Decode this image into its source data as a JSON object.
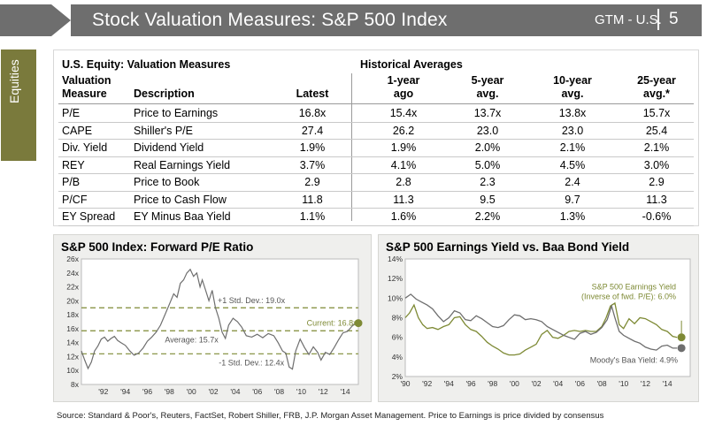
{
  "header": {
    "title": "Stock Valuation Measures: S&P 500 Index",
    "ref": "GTM - U.S.",
    "page": "5"
  },
  "sidebar": {
    "label": "Equities"
  },
  "table": {
    "title": "U.S. Equity: Valuation Measures",
    "hist_title": "Historical Averages",
    "headers": {
      "measure": "Valuation\nMeasure",
      "description": "Description",
      "latest": "Latest",
      "h1": "1-year\nago",
      "h2": "5-year\navg.",
      "h3": "10-year\navg.",
      "h4": "25-year\navg.*"
    },
    "rows": [
      [
        "P/E",
        "Price to Earnings",
        "16.8x",
        "15.4x",
        "13.7x",
        "13.8x",
        "15.7x"
      ],
      [
        "CAPE",
        "Shiller's P/E",
        "27.4",
        "26.2",
        "23.0",
        "23.0",
        "25.4"
      ],
      [
        "Div. Yield",
        "Dividend Yield",
        "1.9%",
        "1.9%",
        "2.0%",
        "2.1%",
        "2.1%"
      ],
      [
        "REY",
        "Real Earnings Yield",
        "3.7%",
        "4.1%",
        "5.0%",
        "4.5%",
        "3.0%"
      ],
      [
        "P/B",
        "Price to Book",
        "2.9",
        "2.8",
        "2.3",
        "2.4",
        "2.9"
      ],
      [
        "P/CF",
        "Price to Cash Flow",
        "11.8",
        "11.3",
        "9.5",
        "9.7",
        "11.3"
      ],
      [
        "EY Spread",
        "EY Minus Baa Yield",
        "1.1%",
        "1.6%",
        "2.2%",
        "1.3%",
        "-0.6%"
      ]
    ]
  },
  "chart_data": [
    {
      "type": "line",
      "title": "S&P 500 Index: Forward P/E Ratio",
      "ylim": [
        8,
        26
      ],
      "yticks": [
        "8x",
        "10x",
        "12x",
        "14x",
        "16x",
        "18x",
        "20x",
        "22x",
        "24x",
        "26x"
      ],
      "xticks": [
        "'92",
        "'94",
        "'96",
        "'98",
        "'00",
        "'02",
        "'04",
        "'06",
        "'08",
        "'10",
        "'12",
        "'14"
      ],
      "reference_lines": [
        {
          "label": "+1 Std. Dev.: 19.0x",
          "value": 19.0
        },
        {
          "label": "Average: 15.7x",
          "value": 15.7
        },
        {
          "label": "-1 Std. Dev.: 12.4x",
          "value": 12.4
        }
      ],
      "current_label": "Current: 16.8x",
      "current_value": 16.8,
      "x": [
        1990.0,
        1990.3,
        1990.6,
        1990.9,
        1991.2,
        1991.5,
        1991.8,
        1992.1,
        1992.4,
        1992.7,
        1993.0,
        1993.3,
        1993.6,
        1994.0,
        1994.4,
        1994.8,
        1995.2,
        1995.6,
        1996.0,
        1996.4,
        1996.8,
        1997.2,
        1997.6,
        1998.0,
        1998.4,
        1998.7,
        1999.0,
        1999.3,
        1999.6,
        1999.9,
        2000.2,
        2000.5,
        2000.8,
        2001.0,
        2001.3,
        2001.6,
        2001.9,
        2002.2,
        2002.5,
        2002.8,
        2003.1,
        2003.4,
        2003.8,
        2004.2,
        2004.6,
        2005.0,
        2005.5,
        2006.0,
        2006.5,
        2007.0,
        2007.5,
        2007.9,
        2008.3,
        2008.6,
        2008.9,
        2009.2,
        2009.5,
        2009.9,
        2010.3,
        2010.7,
        2011.1,
        2011.5,
        2011.8,
        2012.2,
        2012.6,
        2013.0,
        2013.4,
        2013.8,
        2014.2,
        2014.6,
        2014.9
      ],
      "values": [
        12.8,
        11.5,
        10.3,
        11.2,
        12.8,
        13.5,
        14.5,
        14.8,
        14.2,
        14.6,
        14.9,
        14.3,
        14.0,
        13.6,
        12.8,
        12.2,
        12.5,
        13.2,
        14.2,
        14.8,
        15.5,
        16.5,
        18.0,
        19.5,
        21.0,
        20.5,
        22.5,
        23.0,
        24.0,
        24.5,
        23.5,
        24.0,
        22.0,
        23.0,
        21.5,
        20.0,
        21.5,
        19.0,
        17.5,
        15.5,
        14.6,
        16.5,
        17.5,
        17.0,
        16.2,
        15.0,
        14.8,
        15.2,
        14.7,
        15.3,
        15.0,
        14.0,
        12.8,
        12.5,
        10.5,
        10.2,
        12.8,
        14.5,
        13.3,
        12.3,
        13.4,
        12.6,
        11.5,
        12.6,
        12.3,
        13.3,
        14.4,
        15.4,
        15.6,
        16.3,
        16.8
      ]
    },
    {
      "type": "line",
      "title": "S&P 500 Earnings Yield vs. Baa Bond Yield",
      "ylim": [
        2,
        14
      ],
      "yticks": [
        "2%",
        "4%",
        "6%",
        "8%",
        "10%",
        "12%",
        "14%"
      ],
      "xticks": [
        "'90",
        "'92",
        "'94",
        "'96",
        "'98",
        "'00",
        "'02",
        "'04",
        "'06",
        "'08",
        "'10",
        "'12",
        "'14"
      ],
      "series": [
        {
          "name": "S&P 500 Earnings Yield (Inverse of fwd. P/E): 6.0%",
          "color": "#7e8a35",
          "x": [
            1990.0,
            1990.4,
            1990.8,
            1991.2,
            1991.6,
            1992.0,
            1992.5,
            1993.0,
            1993.5,
            1994.0,
            1994.5,
            1995.0,
            1995.5,
            1996.0,
            1996.5,
            1997.0,
            1997.5,
            1998.0,
            1998.5,
            1999.0,
            1999.5,
            2000.0,
            2000.5,
            2001.0,
            2001.5,
            2002.0,
            2002.5,
            2003.0,
            2003.5,
            2004.0,
            2004.5,
            2005.0,
            2005.5,
            2006.0,
            2006.5,
            2007.0,
            2007.5,
            2008.0,
            2008.4,
            2008.8,
            2009.2,
            2009.6,
            2010.0,
            2010.5,
            2011.0,
            2011.5,
            2012.0,
            2012.5,
            2013.0,
            2013.5,
            2014.0,
            2014.5,
            2014.9
          ],
          "values": [
            8.0,
            8.5,
            9.3,
            8.0,
            7.3,
            6.9,
            7.0,
            6.8,
            7.1,
            7.3,
            8.0,
            8.1,
            7.3,
            6.8,
            6.6,
            6.1,
            5.5,
            5.1,
            4.8,
            4.4,
            4.2,
            4.2,
            4.3,
            4.7,
            5.0,
            5.3,
            6.3,
            6.7,
            6.0,
            5.9,
            6.2,
            6.6,
            6.7,
            6.6,
            6.7,
            6.6,
            6.6,
            7.1,
            8.0,
            9.2,
            9.5,
            7.3,
            6.9,
            7.9,
            7.4,
            8.0,
            7.9,
            7.6,
            7.3,
            6.8,
            6.6,
            6.1,
            6.0
          ]
        },
        {
          "name": "Moody's Baa Yield: 4.9%",
          "color": "#6e6e6e",
          "x": [
            1990.0,
            1990.5,
            1991.0,
            1991.5,
            1992.0,
            1992.5,
            1993.0,
            1993.5,
            1994.0,
            1994.5,
            1995.0,
            1995.5,
            1996.0,
            1996.5,
            1997.0,
            1997.5,
            1998.0,
            1998.5,
            1999.0,
            1999.5,
            2000.0,
            2000.5,
            2001.0,
            2001.5,
            2002.0,
            2002.5,
            2003.0,
            2003.5,
            2004.0,
            2004.5,
            2005.0,
            2005.5,
            2006.0,
            2006.5,
            2007.0,
            2007.5,
            2008.0,
            2008.5,
            2008.9,
            2009.2,
            2009.6,
            2010.0,
            2010.5,
            2011.0,
            2011.5,
            2012.0,
            2012.5,
            2013.0,
            2013.5,
            2014.0,
            2014.5,
            2014.9
          ],
          "values": [
            10.0,
            10.4,
            9.9,
            9.6,
            9.3,
            8.9,
            8.2,
            7.6,
            8.0,
            8.7,
            8.5,
            7.8,
            7.7,
            8.2,
            7.9,
            7.5,
            7.1,
            7.0,
            7.2,
            7.8,
            8.3,
            8.2,
            7.8,
            7.9,
            7.8,
            7.6,
            7.1,
            6.8,
            6.5,
            6.2,
            6.0,
            5.8,
            6.4,
            6.6,
            6.3,
            6.5,
            7.0,
            7.8,
            9.2,
            8.0,
            6.6,
            6.2,
            5.9,
            5.6,
            5.4,
            5.0,
            4.8,
            4.7,
            5.1,
            5.2,
            4.9,
            4.9
          ]
        }
      ]
    }
  ],
  "source": "Source: Standard & Poor's, Reuters, FactSet, Robert Shiller, FRB, J.P. Morgan Asset Management. Price to Earnings is price divided by consensus"
}
